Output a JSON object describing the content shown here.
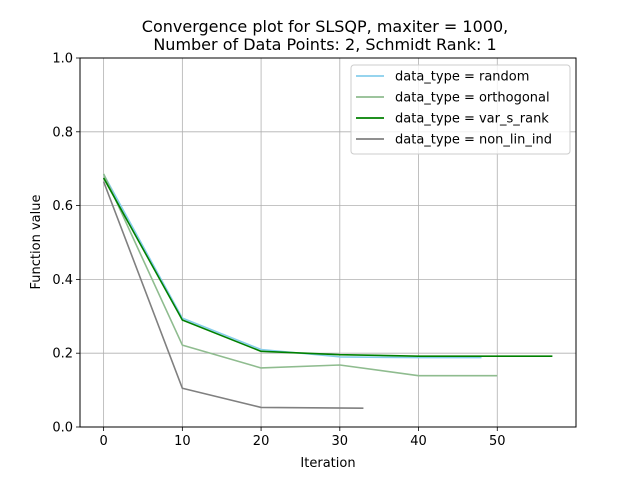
{
  "chart_data": {
    "type": "line",
    "title_line1": "Convergence plot for SLSQP, maxiter = 1000,",
    "title_line2": "Number of Data Points: 2, Schmidt Rank: 1",
    "xlabel": "Iteration",
    "ylabel": "Function value",
    "xlim": [
      -3,
      60
    ],
    "ylim": [
      0.0,
      1.0
    ],
    "xticks": [
      0,
      10,
      20,
      30,
      40,
      50
    ],
    "yticks": [
      0.0,
      0.2,
      0.4,
      0.6,
      0.8,
      1.0
    ],
    "xtick_labels": [
      "0",
      "10",
      "20",
      "30",
      "40",
      "50"
    ],
    "ytick_labels": [
      "0.0",
      "0.2",
      "0.4",
      "0.6",
      "0.8",
      "1.0"
    ],
    "grid": true,
    "legend_position": "top-right",
    "series": [
      {
        "name": "data_type = random",
        "color": "#87ceeb",
        "x": [
          0,
          10,
          20,
          30,
          40,
          48
        ],
        "y": [
          0.685,
          0.295,
          0.21,
          0.19,
          0.188,
          0.188
        ]
      },
      {
        "name": "data_type = orthogonal",
        "color": "#8fbc8f",
        "x": [
          0,
          10,
          20,
          30,
          40,
          50
        ],
        "y": [
          0.686,
          0.222,
          0.16,
          0.168,
          0.139,
          0.139
        ]
      },
      {
        "name": "data_type = var_s_rank",
        "color": "#008000",
        "x": [
          0,
          10,
          20,
          30,
          40,
          57
        ],
        "y": [
          0.675,
          0.29,
          0.205,
          0.196,
          0.192,
          0.192
        ]
      },
      {
        "name": "data_type = non_lin_ind",
        "color": "#808080",
        "x": [
          0,
          10,
          20,
          33
        ],
        "y": [
          0.665,
          0.105,
          0.053,
          0.051
        ]
      }
    ]
  }
}
